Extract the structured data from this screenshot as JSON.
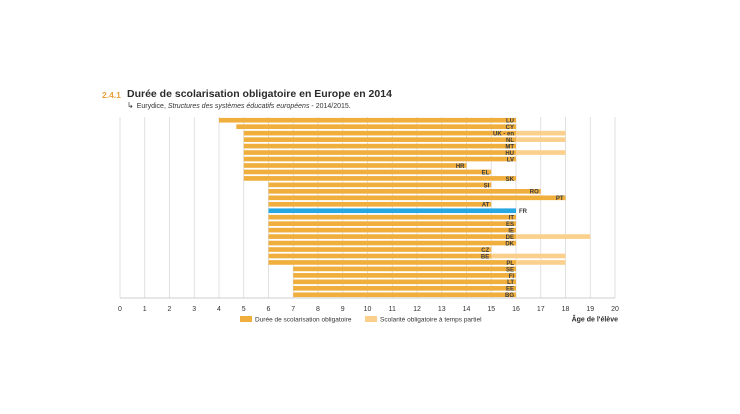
{
  "figure": {
    "number": "2.4.1",
    "title": "Durée de scolarisation obligatoire en Europe en 2014",
    "source_prefix": "Eurydice, ",
    "source_italic": "Structures des systèmes éducatifs européens",
    "source_suffix": " - 2014/2015."
  },
  "chart_data": {
    "type": "bar",
    "orientation": "horizontal-range",
    "xlabel": "Âge de l'élève",
    "xlim": [
      0,
      20
    ],
    "xticks": [
      0,
      1,
      2,
      3,
      4,
      5,
      6,
      7,
      8,
      9,
      10,
      11,
      12,
      13,
      14,
      15,
      16,
      17,
      18,
      19,
      20
    ],
    "grid": true,
    "legend_position": "bottom",
    "colors": {
      "obligatoire": "#f0ae3c",
      "partiel": "#fbd08c",
      "highlight": "#28a7e0",
      "grid": "#d9d9d9"
    },
    "series": [
      {
        "name": "Durée de scolarisation obligatoire",
        "key": "obligatoire"
      },
      {
        "name": "Scolarité obligatoire à temps partiel",
        "key": "partiel"
      }
    ],
    "rows": [
      {
        "country": "LU",
        "start": 4,
        "end": 16
      },
      {
        "country": "CY",
        "start": 4.7,
        "end": 16
      },
      {
        "country": "UK - en",
        "start": 5,
        "end": 16,
        "partial_end": 18
      },
      {
        "country": "NL",
        "start": 5,
        "end": 16,
        "partial_end": 18
      },
      {
        "country": "MT",
        "start": 5,
        "end": 16
      },
      {
        "country": "HU",
        "start": 5,
        "end": 16,
        "partial_end": 18
      },
      {
        "country": "LV",
        "start": 5,
        "end": 16
      },
      {
        "country": "HR",
        "start": 5,
        "end": 14
      },
      {
        "country": "EL",
        "start": 5,
        "end": 15
      },
      {
        "country": "SK",
        "start": 5,
        "end": 16
      },
      {
        "country": "SI",
        "start": 6,
        "end": 15
      },
      {
        "country": "RO",
        "start": 6,
        "end": 17
      },
      {
        "country": "PT",
        "start": 6,
        "end": 18
      },
      {
        "country": "AT",
        "start": 6,
        "end": 15
      },
      {
        "country": "FR",
        "start": 6,
        "end": 16,
        "highlight": true
      },
      {
        "country": "IT",
        "start": 6,
        "end": 16
      },
      {
        "country": "ES",
        "start": 6,
        "end": 16
      },
      {
        "country": "IE",
        "start": 6,
        "end": 16
      },
      {
        "country": "DE",
        "start": 6,
        "end": 16,
        "partial_end": 19
      },
      {
        "country": "DK",
        "start": 6,
        "end": 16
      },
      {
        "country": "CZ",
        "start": 6,
        "end": 15
      },
      {
        "country": "BE",
        "start": 6,
        "end": 15,
        "partial_end": 18
      },
      {
        "country": "PL",
        "start": 6,
        "end": 16,
        "partial_end": 18
      },
      {
        "country": "SE",
        "start": 7,
        "end": 16
      },
      {
        "country": "FI",
        "start": 7,
        "end": 16
      },
      {
        "country": "LT",
        "start": 7,
        "end": 16
      },
      {
        "country": "EE",
        "start": 7,
        "end": 16
      },
      {
        "country": "BG",
        "start": 7,
        "end": 16
      }
    ]
  }
}
